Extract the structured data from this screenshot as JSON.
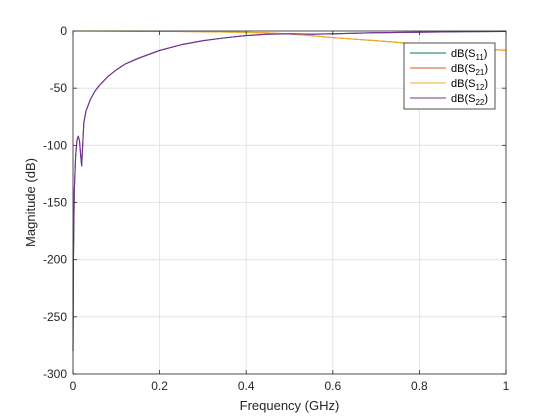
{
  "chart_data": {
    "type": "line",
    "title": "",
    "xlabel": "Frequency (GHz)",
    "ylabel": "Magnitude (dB)",
    "xlim": [
      0,
      1
    ],
    "ylim": [
      -300,
      0
    ],
    "xticks": [
      0,
      0.2,
      0.4,
      0.6,
      0.8,
      1
    ],
    "xtick_labels": [
      "0",
      "0.2",
      "0.4",
      "0.6",
      "0.8",
      "1"
    ],
    "yticks": [
      0,
      -50,
      -100,
      -150,
      -200,
      -250,
      -300
    ],
    "ytick_labels": [
      "0",
      "-50",
      "-100",
      "-150",
      "-200",
      "-250",
      "-300"
    ],
    "grid": true,
    "legend_position": "top-right",
    "series": [
      {
        "name": "dB(S11)",
        "legend": {
          "base": "dB(S",
          "sub": "11",
          "end": ")"
        },
        "color": "#0a7a6a",
        "x": [
          0.0,
          0.001,
          0.003,
          0.006,
          0.009,
          0.012,
          0.015,
          0.018,
          0.02,
          0.025,
          0.03,
          0.04,
          0.05,
          0.06,
          0.08,
          0.1,
          0.12,
          0.15,
          0.2,
          0.25,
          0.3,
          0.35,
          0.4,
          0.45,
          0.5,
          0.52,
          0.55,
          0.6,
          0.7,
          0.8,
          0.9,
          1.0
        ],
        "y": [
          -280,
          -200,
          -140,
          -110,
          -96,
          -92,
          -96,
          -110,
          -118,
          -80,
          -70,
          -60,
          -53,
          -48,
          -40,
          -34,
          -29,
          -24,
          -17,
          -12,
          -8.5,
          -6,
          -4,
          -2.8,
          -2.5,
          -2.6,
          -2.8,
          -2.5,
          -1.5,
          -1.0,
          -0.6,
          -0.4
        ]
      },
      {
        "name": "dB(S21)",
        "legend": {
          "base": "dB(S",
          "sub": "21",
          "end": ")"
        },
        "color": "#d95319",
        "x": [
          0.0,
          0.1,
          0.2,
          0.3,
          0.4,
          0.45,
          0.5,
          0.55,
          0.6,
          0.7,
          0.8,
          0.9,
          1.0
        ],
        "y": [
          0,
          -0.1,
          -0.3,
          -0.6,
          -1.2,
          -1.7,
          -2.6,
          -4.0,
          -5.8,
          -8.5,
          -11.5,
          -14.5,
          -17
        ]
      },
      {
        "name": "dB(S12)",
        "legend": {
          "base": "dB(S",
          "sub": "12",
          "end": ")"
        },
        "color": "#edb120",
        "x": [
          0.0,
          0.1,
          0.2,
          0.3,
          0.4,
          0.45,
          0.5,
          0.55,
          0.6,
          0.7,
          0.8,
          0.9,
          1.0
        ],
        "y": [
          0,
          -0.1,
          -0.3,
          -0.6,
          -1.2,
          -1.7,
          -2.6,
          -4.0,
          -5.8,
          -8.5,
          -11.5,
          -14.5,
          -17
        ]
      },
      {
        "name": "dB(S22)",
        "legend": {
          "base": "dB(S",
          "sub": "22",
          "end": ")"
        },
        "color": "#7e2f8e",
        "x": [
          0.0,
          0.001,
          0.003,
          0.006,
          0.009,
          0.012,
          0.015,
          0.018,
          0.02,
          0.025,
          0.03,
          0.04,
          0.05,
          0.06,
          0.08,
          0.1,
          0.12,
          0.15,
          0.2,
          0.25,
          0.3,
          0.35,
          0.4,
          0.45,
          0.5,
          0.52,
          0.55,
          0.6,
          0.7,
          0.8,
          0.9,
          1.0
        ],
        "y": [
          -280,
          -200,
          -140,
          -110,
          -96,
          -92,
          -96,
          -110,
          -118,
          -80,
          -70,
          -60,
          -53,
          -48,
          -40,
          -34,
          -29,
          -24,
          -17,
          -12,
          -8.5,
          -6,
          -4,
          -2.8,
          -2.5,
          -2.6,
          -2.8,
          -2.5,
          -1.5,
          -1.0,
          -0.6,
          -0.4
        ]
      }
    ]
  }
}
